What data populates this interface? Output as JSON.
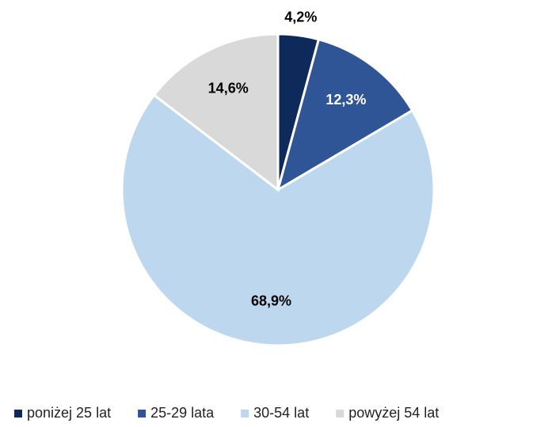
{
  "chart_data": {
    "type": "pie",
    "categories": [
      "poniżej 25 lat",
      "25-29 lata",
      "30-54 lat",
      "powyżej 54 lat"
    ],
    "values": [
      4.2,
      12.3,
      68.9,
      14.6
    ],
    "value_labels": [
      "4,2%",
      "12,3%",
      "68,9%",
      "14,6%"
    ],
    "colors": [
      "#0e2a5a",
      "#2f5597",
      "#bdd7ee",
      "#d9d9d9"
    ],
    "legend": "bottom"
  }
}
